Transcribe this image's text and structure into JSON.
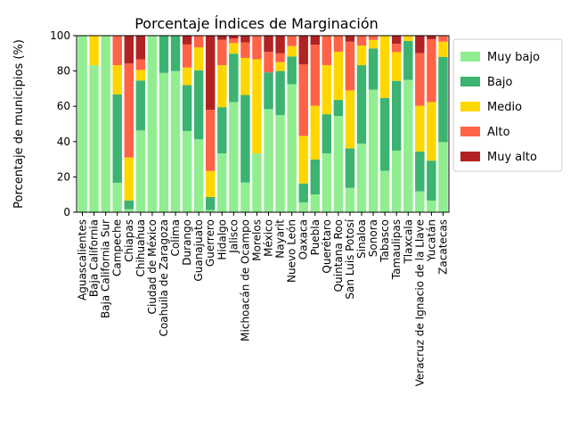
{
  "chart_data": {
    "type": "bar",
    "stacked": true,
    "title": "Porcentaje Índices de Marginación",
    "xlabel": "",
    "ylabel": "Porcentaje de municipios (%)",
    "ylim": [
      0,
      100
    ],
    "yticks": [
      0,
      20,
      40,
      60,
      80,
      100
    ],
    "grid": false,
    "legend_position": "outside-right",
    "categories": [
      "Aguascalientes",
      "Baja California",
      "Baja California Sur",
      "Campeche",
      "Chiapas",
      "Chihuahua",
      "Ciudad de México",
      "Coahuila de Zaragoza",
      "Colima",
      "Durango",
      "Guanajuato",
      "Guerrero",
      "Hidalgo",
      "Jalisco",
      "Michoacán de Ocampo",
      "Morelos",
      "México",
      "Nayarit",
      "Nuevo León",
      "Oaxaca",
      "Puebla",
      "Querétaro",
      "Quintana Roo",
      "San Luis Potosí",
      "Sinaloa",
      "Sonora",
      "Tabasco",
      "Tamaulipas",
      "Tlaxcala",
      "Veracruz de Ignacio de la Llave",
      "Yucatán",
      "Zacatecas"
    ],
    "series": [
      {
        "name": "Muy bajo",
        "color": "#90ee90",
        "values": [
          100,
          83.3,
          100,
          16.7,
          1.7,
          46.3,
          100,
          78.9,
          80,
          46,
          41.3,
          1.2,
          33.3,
          62.4,
          16.8,
          33.3,
          58.4,
          55,
          72.5,
          5.6,
          10.1,
          33.3,
          54.5,
          13.8,
          38.9,
          69.4,
          23.5,
          34.9,
          75,
          11.8,
          6.6,
          39.7
        ]
      },
      {
        "name": "Bajo",
        "color": "#3cb371",
        "values": [
          0,
          0,
          0,
          50,
          5,
          28.3,
          0,
          21.1,
          20,
          26,
          39.1,
          7.4,
          26.2,
          27.4,
          49.6,
          0,
          20.8,
          25,
          15.7,
          10.7,
          19.8,
          22.2,
          9.1,
          22.4,
          44.4,
          23.4,
          41.2,
          39.5,
          22,
          22.6,
          22.6,
          48.3
        ]
      },
      {
        "name": "Medio",
        "color": "#ffd700",
        "values": [
          0,
          16.7,
          0,
          16.6,
          24.3,
          6,
          0,
          0,
          0,
          10,
          13,
          14.8,
          23.8,
          6,
          21,
          53.3,
          0,
          5,
          5.9,
          26.9,
          30.4,
          27.8,
          27.3,
          32.8,
          11.1,
          4.8,
          35.3,
          16.3,
          2.9,
          25.9,
          33.2,
          8.6
        ]
      },
      {
        "name": "Alto",
        "color": "#ff6347",
        "values": [
          0,
          0,
          0,
          16.7,
          53.2,
          6,
          0,
          0,
          0,
          13,
          6.5,
          34.6,
          14.3,
          2.5,
          8.8,
          13.3,
          11.6,
          5,
          5.9,
          40.5,
          34.6,
          16.7,
          9.1,
          27.6,
          5.6,
          2.4,
          0,
          4.7,
          0.1,
          29.8,
          35.6,
          3.4
        ]
      },
      {
        "name": "Muy alto",
        "color": "#b22222",
        "values": [
          0,
          0,
          0,
          0,
          15.8,
          13.4,
          0,
          0,
          0,
          5,
          0.1,
          42,
          2.4,
          1.7,
          3.8,
          0.1,
          9.2,
          10,
          0,
          16.3,
          5.1,
          0,
          0,
          3.4,
          0,
          0,
          0,
          4.6,
          0,
          9.9,
          2,
          0
        ]
      }
    ]
  }
}
